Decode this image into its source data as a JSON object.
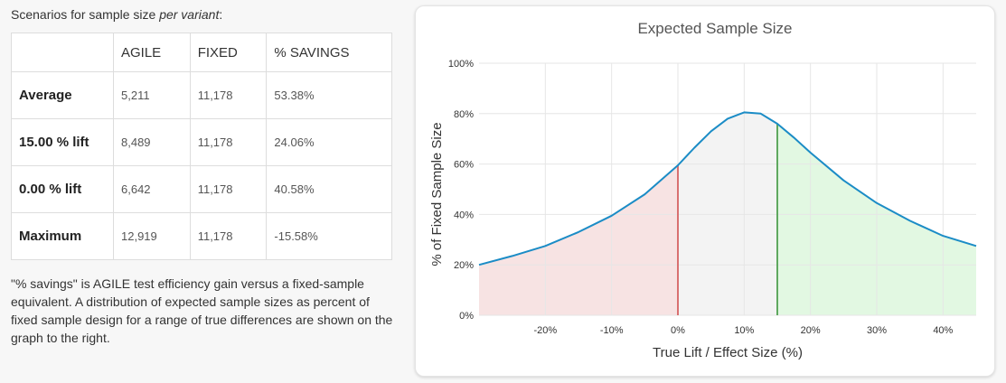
{
  "caption": {
    "text": "Scenarios for sample size ",
    "emph": "per variant",
    "suffix": ":"
  },
  "table": {
    "headers": [
      "",
      "AGILE",
      "FIXED",
      "% SAVINGS"
    ],
    "rows": [
      {
        "label": "Average",
        "agile": "5,211",
        "fixed": "11,178",
        "savings": "53.38%"
      },
      {
        "label": "15.00 % lift",
        "agile": "8,489",
        "fixed": "11,178",
        "savings": "24.06%"
      },
      {
        "label": "0.00 % lift",
        "agile": "6,642",
        "fixed": "11,178",
        "savings": "40.58%"
      },
      {
        "label": "Maximum",
        "agile": "12,919",
        "fixed": "11,178",
        "savings": "-15.58%"
      }
    ]
  },
  "note": "\"% savings\" is AGILE test efficiency gain versus a fixed-sample equivalent. A distribution of expected sample sizes as percent of fixed sample design for a range of true differences are shown on the graph to the right.",
  "chart_data": {
    "type": "area",
    "title": "Expected Sample Size",
    "xlabel": "True Lift / Effect Size (%)",
    "ylabel": "% of Fixed Sample Size",
    "xlim": [
      -30,
      45
    ],
    "ylim": [
      0,
      100
    ],
    "x_ticks": [
      -20,
      -10,
      0,
      10,
      20,
      30,
      40
    ],
    "x_tick_labels": [
      "-20%",
      "-10%",
      "0%",
      "10%",
      "20%",
      "30%",
      "40%"
    ],
    "y_ticks": [
      0,
      20,
      40,
      60,
      80,
      100
    ],
    "y_tick_labels": [
      "0%",
      "20%",
      "40%",
      "60%",
      "80%",
      "100%"
    ],
    "grid": true,
    "series": [
      {
        "x": [
          -30,
          -25,
          -20,
          -15,
          -10,
          -5,
          0,
          2.5,
          5,
          7.5,
          10,
          12.5,
          15,
          17.5,
          20,
          25,
          30,
          35,
          40,
          45
        ],
        "y": [
          20,
          23.5,
          27.5,
          33,
          39.5,
          48,
          59.5,
          66.5,
          73,
          78,
          80.5,
          80,
          76,
          70.5,
          64.5,
          53.5,
          44.5,
          37.5,
          31.5,
          27.5
        ]
      }
    ],
    "markers": [
      {
        "x": 0,
        "y": 59.5,
        "color": "#d97070"
      },
      {
        "x": 15,
        "y": 76,
        "color": "#5fa85f"
      }
    ],
    "regions": [
      {
        "from": -30,
        "to": 0,
        "color": "#f7e3e3"
      },
      {
        "from": 0,
        "to": 15,
        "color": "#f3f3f3"
      },
      {
        "from": 15,
        "to": 45,
        "color": "#e2f8e2"
      }
    ],
    "line_color": "#1b8cc6"
  }
}
